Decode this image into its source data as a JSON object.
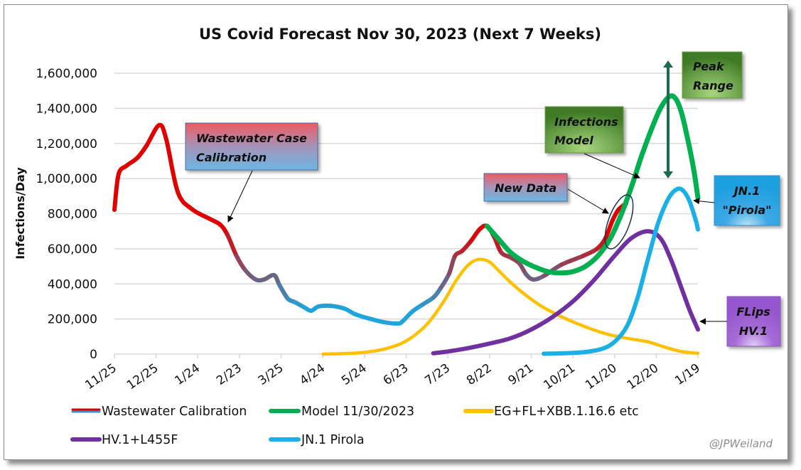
{
  "chart_data": {
    "type": "line",
    "title": "US Covid Forecast Nov 30, 2023 (Next 7 Weeks)",
    "xlabel": "",
    "ylabel": "Infections/Day",
    "ylim": [
      0,
      1600000
    ],
    "yticks": [
      0,
      200000,
      400000,
      600000,
      800000,
      1000000,
      1200000,
      1400000,
      1600000
    ],
    "ytick_labels": [
      "0",
      "200,000",
      "400,000",
      "600,000",
      "800,000",
      "1,000,000",
      "1,200,000",
      "1,400,000",
      "1,600,000"
    ],
    "categories": [
      "11/25",
      "12/25",
      "1/24",
      "2/23",
      "3/25",
      "4/24",
      "5/24",
      "6/23",
      "7/23",
      "8/22",
      "9/21",
      "10/21",
      "11/20",
      "12/20",
      "1/19"
    ],
    "grid": true,
    "legend_position": "bottom",
    "series": [
      {
        "name": "Wastewater Calibration",
        "color": "#e00000",
        "color_low": "#1ea6dc",
        "x": [
          0,
          0.1,
          0.29,
          0.55,
          0.77,
          1.07,
          1.24,
          1.52,
          1.86,
          2.29,
          2.54,
          2.71,
          2.93,
          3.14,
          3.39,
          3.59,
          3.83,
          3.96,
          4.16,
          4.33,
          4.55,
          4.72,
          4.89,
          5.18,
          5.52,
          5.78,
          6.12,
          6.46,
          6.8,
          6.91,
          7.15,
          7.4,
          7.66,
          7.83,
          8.03,
          8.17,
          8.34,
          8.54,
          8.77,
          8.94,
          9.11,
          9.28,
          9.5,
          9.71,
          9.88,
          10.05,
          10.3,
          10.73,
          11.24,
          11.58,
          11.78,
          11.95,
          12.09,
          12.28
        ],
        "values": [
          822000,
          1025000,
          1073000,
          1118000,
          1187000,
          1304000,
          1227000,
          923000,
          826000,
          770000,
          737000,
          680000,
          559000,
          478000,
          425000,
          425000,
          450000,
          393000,
          316000,
          296000,
          267000,
          247000,
          271000,
          275000,
          259000,
          227000,
          202000,
          182000,
          174000,
          186000,
          243000,
          283000,
          324000,
          377000,
          458000,
          559000,
          587000,
          640000,
          713000,
          729000,
          668000,
          579000,
          551000,
          518000,
          454000,
          425000,
          445000,
          510000,
          559000,
          600000,
          660000,
          761000,
          822000,
          859000
        ]
      },
      {
        "name": "Model 11/30/2023",
        "color": "#00b050",
        "x": [
          8.94,
          9.2,
          9.5,
          9.8,
          10.1,
          10.4,
          10.7,
          11.0,
          11.3,
          11.6,
          11.9,
          12.15,
          12.4,
          12.65,
          12.9,
          13.1,
          13.3,
          13.45,
          13.6,
          13.75,
          13.9,
          14.0
        ],
        "values": [
          729000,
          660000,
          580000,
          530000,
          495000,
          470000,
          462000,
          470000,
          500000,
          560000,
          660000,
          790000,
          950000,
          1130000,
          1290000,
          1400000,
          1465000,
          1460000,
          1380000,
          1230000,
          1050000,
          890000
        ]
      },
      {
        "name": "EG+FL+XBB.1.16.6 etc",
        "color": "#ffc000",
        "x": [
          5.0,
          5.5,
          6.0,
          6.5,
          7.0,
          7.5,
          7.9,
          8.2,
          8.5,
          8.75,
          9.0,
          9.2,
          9.5,
          9.9,
          10.3,
          10.8,
          11.3,
          11.8,
          12.3,
          12.8,
          13.2,
          13.6,
          14.0
        ],
        "values": [
          0,
          3000,
          10000,
          30000,
          75000,
          170000,
          300000,
          420000,
          510000,
          540000,
          525000,
          480000,
          410000,
          330000,
          265000,
          205000,
          155000,
          115000,
          90000,
          70000,
          40000,
          15000,
          5000
        ]
      },
      {
        "name": "HV.1+L455F",
        "color": "#7030a0",
        "x": [
          7.65,
          8.0,
          8.5,
          9.0,
          9.5,
          10.0,
          10.5,
          11.0,
          11.5,
          12.0,
          12.4,
          12.8,
          13.1,
          13.35,
          13.6,
          13.8,
          14.0
        ],
        "values": [
          5000,
          15000,
          35000,
          60000,
          90000,
          140000,
          210000,
          300000,
          420000,
          560000,
          660000,
          700000,
          660000,
          540000,
          380000,
          250000,
          140000
        ]
      },
      {
        "name": "JN.1 Pirola",
        "color": "#1ab0e6",
        "x": [
          10.3,
          10.8,
          11.3,
          11.7,
          12.0,
          12.3,
          12.55,
          12.8,
          13.05,
          13.3,
          13.5,
          13.65,
          13.8,
          13.95,
          14.0
        ],
        "values": [
          2000,
          5000,
          12000,
          30000,
          70000,
          160000,
          320000,
          540000,
          750000,
          890000,
          940000,
          930000,
          870000,
          760000,
          710000
        ]
      }
    ],
    "annotations": [
      {
        "text": "Wastewater Case Calibration",
        "points_to": "Wastewater Calibration near 2/23"
      },
      {
        "text": "New Data",
        "points_to": "latest wastewater data near 11/20"
      },
      {
        "text": "Infections Model",
        "points_to": "Model 11/30/2023 rising edge"
      },
      {
        "text": "Peak Range",
        "range": [
          1000000,
          1650000
        ]
      },
      {
        "text": "JN.1 \"Pirola\"",
        "points_to": "Model 11/30/2023 at 1/19"
      },
      {
        "text": "FLips HV.1",
        "points_to": "HV.1+L455F at 1/19"
      }
    ]
  },
  "labels": {
    "title": "US Covid Forecast Nov 30, 2023 (Next 7 Weeks)",
    "ylabel": "Infections/Day",
    "credit": "@JPWeiland",
    "notes": {
      "wastewater_line1": "Wastewater Case",
      "wastewater_line2": "Calibration",
      "new_data": "New Data",
      "infections_line1": "Infections",
      "infections_line2": "Model",
      "peak_line1": "Peak",
      "peak_line2": "Range",
      "jn1_line1": "JN.1",
      "jn1_line2": "\"Pirola\"",
      "flips_line1": "FLips",
      "flips_line2": "HV.1"
    }
  }
}
